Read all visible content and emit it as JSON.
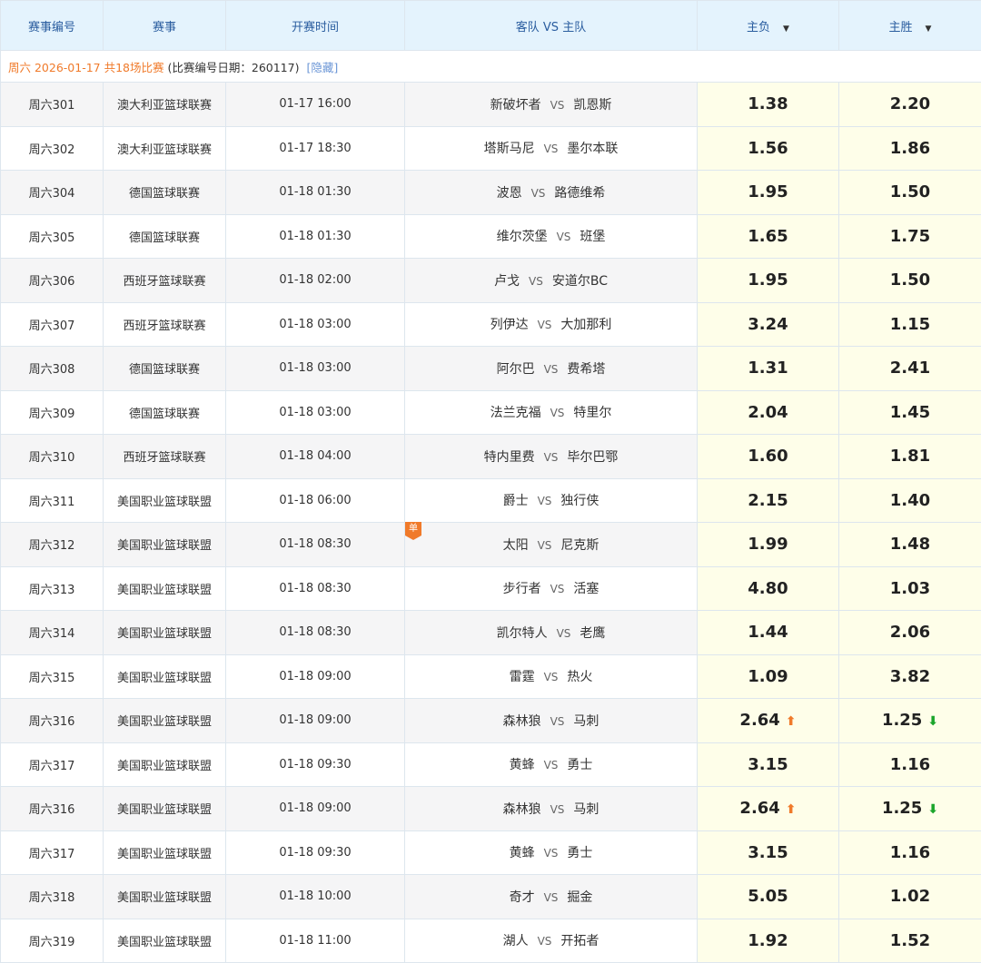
{
  "header": {
    "id": "赛事编号",
    "league": "赛事",
    "time": "开赛时间",
    "teams": "客队 VS 主队",
    "lose": "主负",
    "win": "主胜",
    "sort_icon": "caret-down"
  },
  "info": {
    "date": "周六 2026-01-17 共18场比赛",
    "code": "(比赛编号日期：260117)",
    "hide": "[隐藏]"
  },
  "vs": "VS",
  "single_badge": "单",
  "colors": {
    "header_bg": "#e4f3fd",
    "odds_bg": "#fefee9",
    "accent": "#f07a2a",
    "up": "#f07a2a",
    "down": "#1aa52a"
  },
  "rows": [
    {
      "id": "周六301",
      "league": "澳大利亚篮球联赛",
      "time": "01-17 16:00",
      "away": "新破坏者",
      "home": "凯恩斯",
      "lose": "1.38",
      "win": "2.20"
    },
    {
      "id": "周六302",
      "league": "澳大利亚篮球联赛",
      "time": "01-17 18:30",
      "away": "塔斯马尼",
      "home": "墨尔本联",
      "lose": "1.56",
      "win": "1.86"
    },
    {
      "id": "周六304",
      "league": "德国篮球联赛",
      "time": "01-18 01:30",
      "away": "波恩",
      "home": "路德维希",
      "lose": "1.95",
      "win": "1.50"
    },
    {
      "id": "周六305",
      "league": "德国篮球联赛",
      "time": "01-18 01:30",
      "away": "维尔茨堡",
      "home": "班堡",
      "lose": "1.65",
      "win": "1.75"
    },
    {
      "id": "周六306",
      "league": "西班牙篮球联赛",
      "time": "01-18 02:00",
      "away": "卢戈",
      "home": "安道尔BC",
      "lose": "1.95",
      "win": "1.50"
    },
    {
      "id": "周六307",
      "league": "西班牙篮球联赛",
      "time": "01-18 03:00",
      "away": "列伊达",
      "home": "大加那利",
      "lose": "3.24",
      "win": "1.15"
    },
    {
      "id": "周六308",
      "league": "德国篮球联赛",
      "time": "01-18 03:00",
      "away": "阿尔巴",
      "home": "费希塔",
      "lose": "1.31",
      "win": "2.41"
    },
    {
      "id": "周六309",
      "league": "德国篮球联赛",
      "time": "01-18 03:00",
      "away": "法兰克福",
      "home": "特里尔",
      "lose": "2.04",
      "win": "1.45"
    },
    {
      "id": "周六310",
      "league": "西班牙篮球联赛",
      "time": "01-18 04:00",
      "away": "特内里费",
      "home": "毕尔巴鄂",
      "lose": "1.60",
      "win": "1.81"
    },
    {
      "id": "周六311",
      "league": "美国职业篮球联盟",
      "time": "01-18 06:00",
      "away": "爵士",
      "home": "独行侠",
      "lose": "2.15",
      "win": "1.40"
    },
    {
      "id": "周六312",
      "league": "美国职业篮球联盟",
      "time": "01-18 08:30",
      "away": "太阳",
      "home": "尼克斯",
      "lose": "1.99",
      "win": "1.48",
      "single": true
    },
    {
      "id": "周六313",
      "league": "美国职业篮球联盟",
      "time": "01-18 08:30",
      "away": "步行者",
      "home": "活塞",
      "lose": "4.80",
      "win": "1.03"
    },
    {
      "id": "周六314",
      "league": "美国职业篮球联盟",
      "time": "01-18 08:30",
      "away": "凯尔特人",
      "home": "老鹰",
      "lose": "1.44",
      "win": "2.06"
    },
    {
      "id": "周六315",
      "league": "美国职业篮球联盟",
      "time": "01-18 09:00",
      "away": "雷霆",
      "home": "热火",
      "lose": "1.09",
      "win": "3.82"
    },
    {
      "id": "周六316",
      "league": "美国职业篮球联盟",
      "time": "01-18 09:00",
      "away": "森林狼",
      "home": "马刺",
      "lose": "2.64",
      "win": "1.25",
      "lose_trend": "up",
      "win_trend": "down"
    },
    {
      "id": "周六317",
      "league": "美国职业篮球联盟",
      "time": "01-18 09:30",
      "away": "黄蜂",
      "home": "勇士",
      "lose": "3.15",
      "win": "1.16"
    },
    {
      "id": "周六316",
      "league": "美国职业篮球联盟",
      "time": "01-18 09:00",
      "away": "森林狼",
      "home": "马刺",
      "lose": "2.64",
      "win": "1.25",
      "lose_trend": "up",
      "win_trend": "down"
    },
    {
      "id": "周六317",
      "league": "美国职业篮球联盟",
      "time": "01-18 09:30",
      "away": "黄蜂",
      "home": "勇士",
      "lose": "3.15",
      "win": "1.16"
    },
    {
      "id": "周六318",
      "league": "美国职业篮球联盟",
      "time": "01-18 10:00",
      "away": "奇才",
      "home": "掘金",
      "lose": "5.05",
      "win": "1.02"
    },
    {
      "id": "周六319",
      "league": "美国职业篮球联盟",
      "time": "01-18 11:00",
      "away": "湖人",
      "home": "开拓者",
      "lose": "1.92",
      "win": "1.52"
    }
  ]
}
